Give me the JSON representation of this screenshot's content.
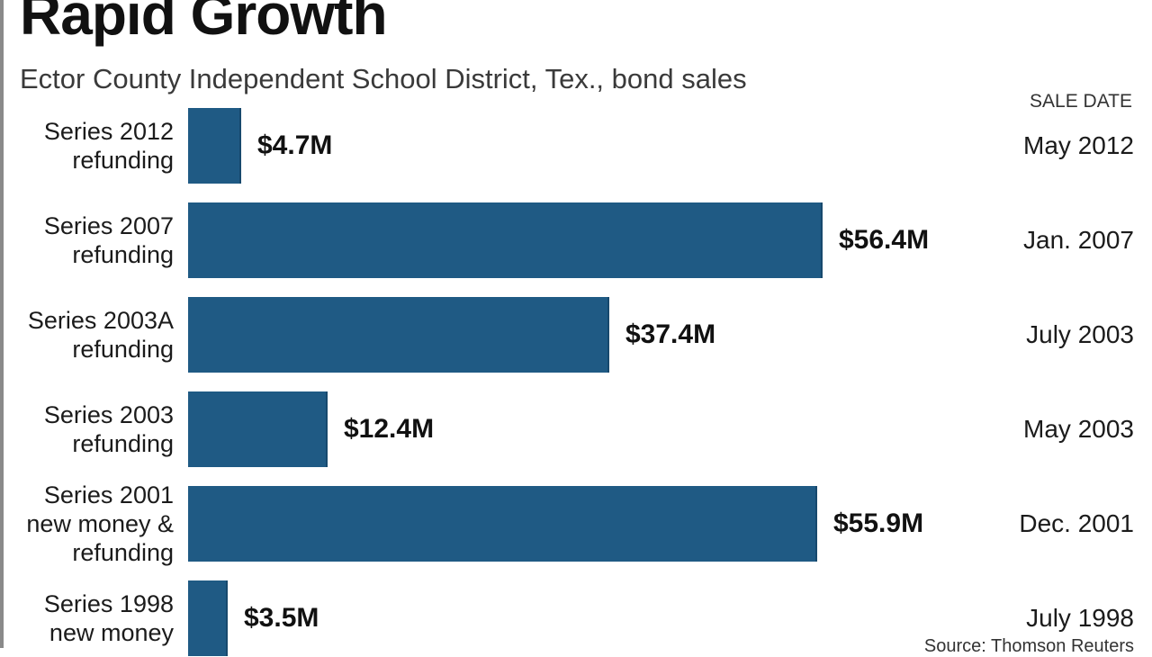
{
  "chart_data": {
    "type": "bar",
    "orientation": "horizontal",
    "title": "Rapid Growth",
    "subtitle": "Ector County Independent School District, Tex., bond sales",
    "date_column_header": "SALE DATE",
    "source": "Source: Thomson Reuters",
    "categories": [
      [
        "Series 2012",
        "refunding"
      ],
      [
        "Series 2007",
        "refunding"
      ],
      [
        "Series 2003A",
        "refunding"
      ],
      [
        "Series 2003",
        "refunding"
      ],
      [
        "Series 2001",
        "new money &",
        "refunding"
      ],
      [
        "Series 1998",
        "new money"
      ]
    ],
    "values": [
      4.7,
      56.4,
      37.4,
      12.4,
      55.9,
      3.5
    ],
    "value_labels": [
      "$4.7M",
      "$56.4M",
      "$37.4M",
      "$12.4M",
      "$55.9M",
      "$3.5M"
    ],
    "sale_dates": [
      "May 2012",
      "Jan. 2007",
      "July 2003",
      "May 2003",
      "Dec. 2001",
      "July 1998"
    ],
    "unit": "$M",
    "xlim": [
      0,
      56.4
    ],
    "grid": false,
    "legend": "none",
    "colors": {
      "bar": "#1f5a84",
      "text": "#1b1b1b",
      "background": "#ffffff"
    }
  }
}
